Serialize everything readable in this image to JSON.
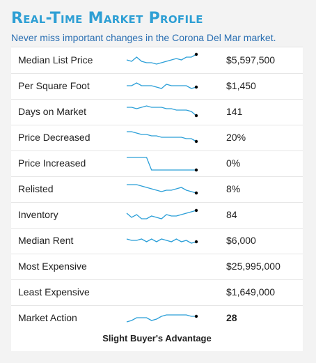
{
  "header": {
    "title": "Real-Time Market Profile",
    "subtitle": "Never miss important changes in the Corona Del Mar market."
  },
  "rows": [
    {
      "label": "Median List Price",
      "value": "$5,597,500",
      "trend": [
        5,
        4,
        7,
        4,
        3,
        3,
        2,
        3,
        4,
        5,
        6,
        5,
        7,
        7,
        9
      ]
    },
    {
      "label": "Per Square Foot",
      "value": "$1,450",
      "trend": [
        5,
        5,
        7,
        5,
        5,
        5,
        4,
        3,
        6,
        5,
        5,
        5,
        5,
        3,
        4
      ]
    },
    {
      "label": "Days on Market",
      "value": "141",
      "trend": [
        8,
        8,
        7,
        8,
        9,
        8,
        8,
        8,
        7,
        7,
        6,
        6,
        6,
        5,
        2
      ]
    },
    {
      "label": "Price Decreased",
      "value": "20%",
      "trend": [
        9,
        9,
        8,
        7,
        7,
        6,
        6,
        5,
        5,
        5,
        5,
        5,
        4,
        4,
        2
      ]
    },
    {
      "label": "Price Increased",
      "value": "0%",
      "trend": [
        9,
        9,
        9,
        9,
        9,
        0,
        0,
        0,
        0,
        0,
        0,
        0,
        0,
        0,
        0
      ]
    },
    {
      "label": "Relisted",
      "value": "8%",
      "trend": [
        8,
        8,
        8,
        7,
        6,
        5,
        4,
        3,
        4,
        4,
        5,
        6,
        4,
        3,
        2
      ]
    },
    {
      "label": "Inventory",
      "value": "84",
      "trend": [
        6,
        3,
        5,
        2,
        2,
        4,
        3,
        2,
        5,
        4,
        4,
        5,
        6,
        7,
        8
      ]
    },
    {
      "label": "Median Rent",
      "value": "$6,000",
      "trend": [
        6,
        5,
        5,
        6,
        4,
        6,
        4,
        6,
        5,
        4,
        6,
        4,
        5,
        3,
        4
      ]
    },
    {
      "label": "Most Expensive",
      "value": "$25,995,000"
    },
    {
      "label": "Least Expensive",
      "value": "$1,649,000"
    },
    {
      "label": "Market Action",
      "value": "28",
      "trend": [
        2,
        3,
        5,
        5,
        5,
        3,
        4,
        6,
        7,
        7,
        7,
        7,
        7,
        6,
        6
      ]
    }
  ],
  "footer": {
    "verdict": "Slight Buyer's Advantage"
  },
  "colors": {
    "accent": "#2e9fd4",
    "sparkline": "#2b9fd8",
    "subtitle": "#2a6fb2"
  }
}
